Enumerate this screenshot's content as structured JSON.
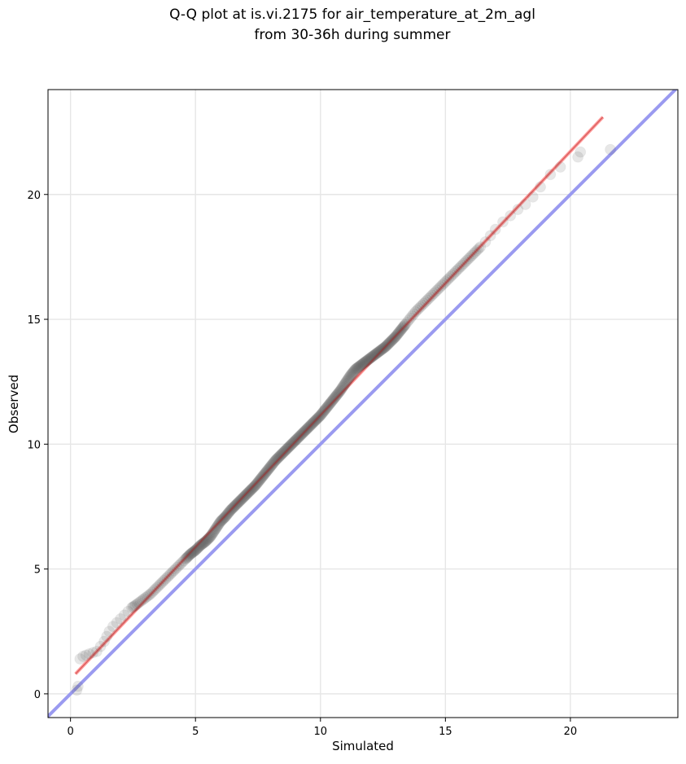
{
  "chart_data": {
    "type": "scatter",
    "title_lines": [
      "Q-Q plot at is.vi.2175 for air_temperature_at_2m_agl",
      "from 30-36h during summer"
    ],
    "xlabel": "Simulated",
    "ylabel": "Observed",
    "xlim": [
      -0.9,
      24.3
    ],
    "ylim": [
      -0.95,
      24.2
    ],
    "xticks": [
      0,
      5,
      10,
      15,
      20
    ],
    "yticks": [
      0,
      5,
      10,
      15,
      20
    ],
    "grid": true,
    "colors": {
      "points": "#555555",
      "fit_line": "#ff8a8a",
      "fit_core": "#b01818",
      "reference_line": "#9a9af0",
      "grid": "#e6e6e6"
    },
    "reference_line": {
      "slope": 1,
      "intercept": 0
    },
    "fit_line": {
      "x": [
        0.2,
        21.3
      ],
      "y": [
        0.8,
        23.1
      ]
    },
    "quantiles": {
      "x": [
        0.25,
        0.3,
        0.38,
        0.5,
        0.62,
        0.75,
        0.9,
        1.05,
        1.2,
        1.35,
        1.45,
        1.55,
        1.7,
        1.85,
        2.0,
        2.15,
        2.3,
        2.45,
        2.6,
        2.8,
        3.0,
        3.2,
        3.4,
        3.6,
        3.8,
        4.0,
        4.2,
        4.4,
        4.6,
        4.8,
        5.0,
        5.2,
        5.4,
        5.6,
        5.8,
        6.0,
        6.2,
        6.4,
        6.6,
        6.8,
        7.0,
        7.2,
        7.4,
        7.6,
        7.8,
        8.0,
        8.2,
        8.4,
        8.6,
        8.8,
        9.0,
        9.2,
        9.4,
        9.6,
        9.8,
        10.0,
        10.2,
        10.4,
        10.6,
        10.8,
        11.0,
        11.2,
        11.4,
        11.6,
        11.8,
        12.0,
        12.2,
        12.4,
        12.6,
        12.8,
        13.0,
        13.2,
        13.4,
        13.6,
        13.8,
        14.0,
        14.2,
        14.4,
        14.6,
        14.8,
        15.0,
        15.2,
        15.4,
        15.6,
        15.8,
        16.0,
        16.2,
        16.4,
        16.6,
        16.8,
        17.0,
        17.3,
        17.6,
        17.9,
        18.2,
        18.5,
        18.8,
        19.2,
        19.6,
        20.3,
        20.4,
        21.6
      ],
      "y": [
        0.15,
        0.3,
        1.4,
        1.5,
        1.55,
        1.6,
        1.65,
        1.7,
        1.9,
        2.1,
        2.3,
        2.5,
        2.7,
        2.85,
        3.0,
        3.15,
        3.3,
        3.45,
        3.55,
        3.7,
        3.85,
        4.0,
        4.2,
        4.4,
        4.6,
        4.8,
        5.0,
        5.2,
        5.4,
        5.6,
        5.75,
        5.95,
        6.1,
        6.3,
        6.6,
        6.9,
        7.1,
        7.35,
        7.55,
        7.75,
        7.95,
        8.15,
        8.35,
        8.6,
        8.85,
        9.1,
        9.35,
        9.55,
        9.75,
        9.95,
        10.15,
        10.35,
        10.55,
        10.75,
        10.95,
        11.15,
        11.4,
        11.65,
        11.9,
        12.15,
        12.45,
        12.75,
        13.0,
        13.15,
        13.3,
        13.45,
        13.6,
        13.75,
        13.9,
        14.1,
        14.3,
        14.55,
        14.8,
        15.05,
        15.3,
        15.5,
        15.7,
        15.9,
        16.1,
        16.3,
        16.5,
        16.7,
        16.9,
        17.1,
        17.3,
        17.5,
        17.7,
        17.9,
        18.1,
        18.35,
        18.6,
        18.9,
        19.15,
        19.4,
        19.6,
        19.9,
        20.3,
        20.8,
        21.1,
        21.5,
        21.7,
        21.8
      ]
    }
  }
}
